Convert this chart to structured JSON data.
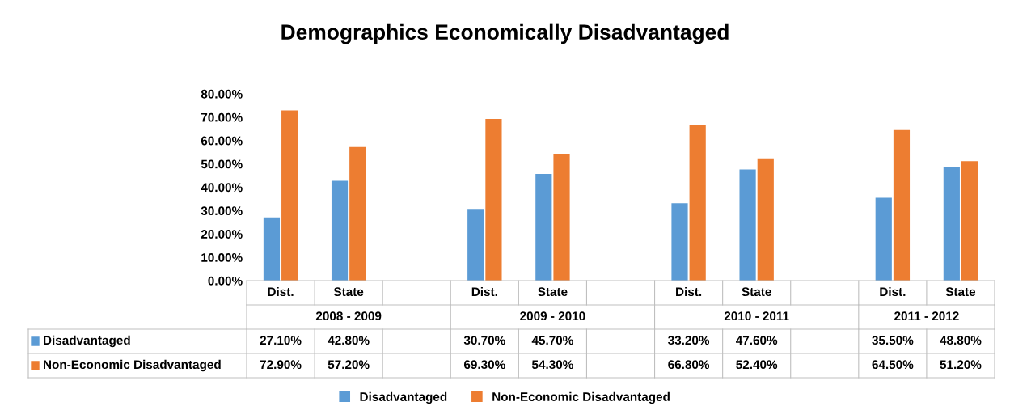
{
  "chart_data": {
    "type": "bar",
    "title": "Demographics Economically Disadvantaged",
    "categories": [
      "Dist.",
      "State",
      null,
      "Dist.",
      "State",
      null,
      "Dist.",
      "State",
      null,
      "Dist.",
      "State"
    ],
    "series": [
      {
        "name": "Disadvantaged",
        "color": "#5b9bd5",
        "values": [
          27.1,
          42.8,
          null,
          30.7,
          45.7,
          null,
          33.2,
          47.6,
          null,
          35.5,
          48.8
        ],
        "value_labels": [
          "27.10%",
          "42.80%",
          null,
          "30.70%",
          "45.70%",
          null,
          "33.20%",
          "47.60%",
          null,
          "35.50%",
          "48.80%"
        ]
      },
      {
        "name": "Non-Economic Disadvantaged",
        "color": "#ed7d31",
        "values": [
          72.9,
          57.2,
          null,
          69.3,
          54.3,
          null,
          66.8,
          52.4,
          null,
          64.5,
          51.2
        ],
        "value_labels": [
          "72.90%",
          "57.20%",
          null,
          "69.30%",
          "54.30%",
          null,
          "66.80%",
          "52.40%",
          null,
          "64.50%",
          "51.20%"
        ]
      }
    ],
    "annotations": [
      "2008 - 2009",
      "2009 - 2010",
      "2010 - 2011",
      "2011 - 2012"
    ],
    "ylim": [
      0,
      80
    ],
    "yticks": [
      {
        "value": 0,
        "label": "0.00%"
      },
      {
        "value": 10,
        "label": "10.00%"
      },
      {
        "value": 20,
        "label": "20.00%"
      },
      {
        "value": 30,
        "label": "30.00%"
      },
      {
        "value": 40,
        "label": "40.00%"
      },
      {
        "value": 50,
        "label": "50.00%"
      },
      {
        "value": 60,
        "label": "60.00%"
      },
      {
        "value": 70,
        "label": "70.00%"
      },
      {
        "value": 80,
        "label": "80.00%"
      }
    ],
    "grid": false,
    "legend": "bottom"
  }
}
